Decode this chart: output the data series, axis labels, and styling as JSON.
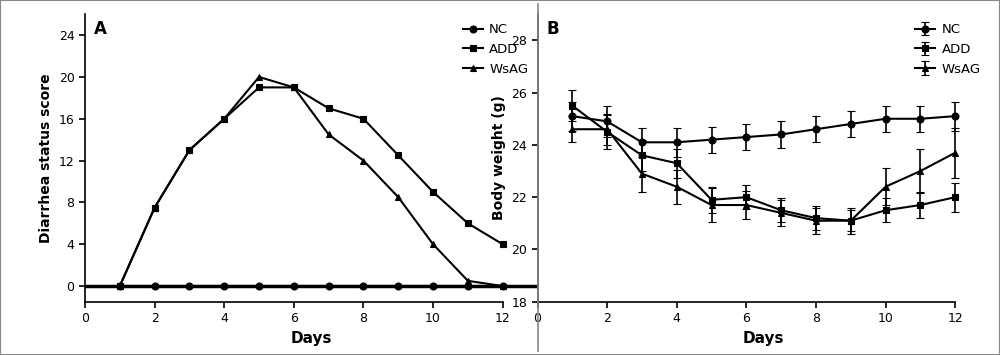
{
  "panel_A": {
    "label": "A",
    "days": [
      1,
      2,
      3,
      4,
      5,
      6,
      7,
      8,
      9,
      10,
      11,
      12
    ],
    "NC": [
      0,
      0,
      0,
      0,
      0,
      0,
      0,
      0,
      0,
      0,
      0,
      0
    ],
    "ADD": [
      0,
      7.5,
      13,
      16,
      19,
      19,
      17,
      16,
      12.5,
      9,
      6,
      4
    ],
    "WsAG": [
      0,
      7.5,
      13,
      16,
      20,
      19,
      14.5,
      12,
      8.5,
      4,
      0.5,
      0
    ],
    "xlabel": "Days",
    "ylabel": "Diarrhea status score",
    "ylim": [
      -1.5,
      26
    ],
    "yticks": [
      0,
      4,
      8,
      12,
      16,
      20,
      24
    ],
    "xlim": [
      0,
      13
    ],
    "xticks": [
      0,
      2,
      4,
      6,
      8,
      10,
      12
    ],
    "legend_labels": [
      "NC",
      "ADD",
      "WsAG"
    ],
    "legend_markers": [
      "o",
      "s",
      "^"
    ]
  },
  "panel_B": {
    "label": "B",
    "days": [
      1,
      2,
      3,
      4,
      5,
      6,
      7,
      8,
      9,
      10,
      11,
      12
    ],
    "NC_mean": [
      25.1,
      24.9,
      24.1,
      24.1,
      24.2,
      24.3,
      24.4,
      24.6,
      24.8,
      25.0,
      25.0,
      25.1
    ],
    "NC_err": [
      0.55,
      0.6,
      0.55,
      0.55,
      0.5,
      0.5,
      0.5,
      0.5,
      0.5,
      0.5,
      0.5,
      0.55
    ],
    "ADD_mean": [
      25.5,
      24.5,
      23.6,
      23.3,
      21.9,
      22.0,
      21.5,
      21.2,
      21.1,
      21.5,
      21.7,
      22.0
    ],
    "ADD_err": [
      0.6,
      0.65,
      0.6,
      0.55,
      0.5,
      0.45,
      0.45,
      0.45,
      0.4,
      0.45,
      0.5,
      0.55
    ],
    "WsAG_mean": [
      24.6,
      24.6,
      22.9,
      22.4,
      21.7,
      21.7,
      21.4,
      21.1,
      21.1,
      22.4,
      23.0,
      23.7
    ],
    "WsAG_err": [
      0.5,
      0.6,
      0.7,
      0.65,
      0.65,
      0.55,
      0.5,
      0.5,
      0.5,
      0.7,
      0.85,
      0.95
    ],
    "xlabel": "Days",
    "ylabel": "Body weight (g)",
    "ylim": [
      18,
      29
    ],
    "yticks": [
      18,
      20,
      22,
      24,
      26,
      28
    ],
    "xlim": [
      0,
      13
    ],
    "xticks": [
      0,
      2,
      4,
      6,
      8,
      10,
      12
    ],
    "legend_labels": [
      "NC",
      "ADD",
      "WsAG"
    ],
    "legend_markers": [
      "o",
      "s",
      "^"
    ]
  },
  "line_color": "#000000",
  "fig_facecolor": "#ffffff",
  "axes_facecolor": "#ffffff",
  "border_color": "#aaaaaa",
  "marker_size": 5,
  "linewidth": 1.5,
  "capsize": 3,
  "elinewidth": 1.2
}
